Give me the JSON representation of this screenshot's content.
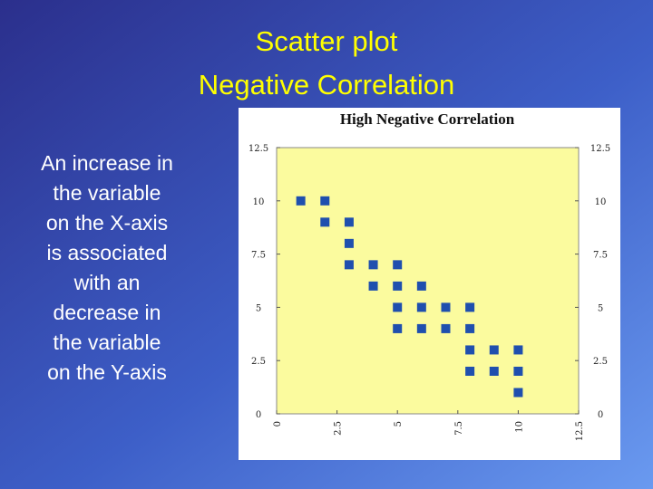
{
  "slide": {
    "title": [
      "Scatter plot",
      "Negative Correlation"
    ],
    "body": [
      "An increase in",
      "the variable",
      "on the X-axis",
      "is associated",
      "with an",
      "decrease in",
      "the variable",
      "on the Y-axis"
    ]
  },
  "chart_data": {
    "type": "scatter",
    "title": "High Negative Correlation",
    "x": [
      1,
      2,
      2,
      3,
      3,
      3,
      4,
      4,
      5,
      5,
      5,
      5,
      6,
      6,
      6,
      7,
      7,
      8,
      8,
      8,
      8,
      9,
      9,
      10,
      10,
      10
    ],
    "values": [
      10,
      10,
      9,
      9,
      8,
      7,
      7,
      6,
      7,
      6,
      5,
      4,
      6,
      5,
      4,
      5,
      4,
      5,
      4,
      3,
      2,
      3,
      2,
      3,
      2,
      1
    ],
    "color": "#1f4fae",
    "xlim": [
      0,
      12.5
    ],
    "ylim": [
      0,
      12.5
    ],
    "xticks": [
      0,
      2.5,
      5,
      7.5,
      10,
      12.5
    ],
    "yticks": [
      0,
      2.5,
      5,
      7.5,
      10,
      12.5
    ]
  }
}
